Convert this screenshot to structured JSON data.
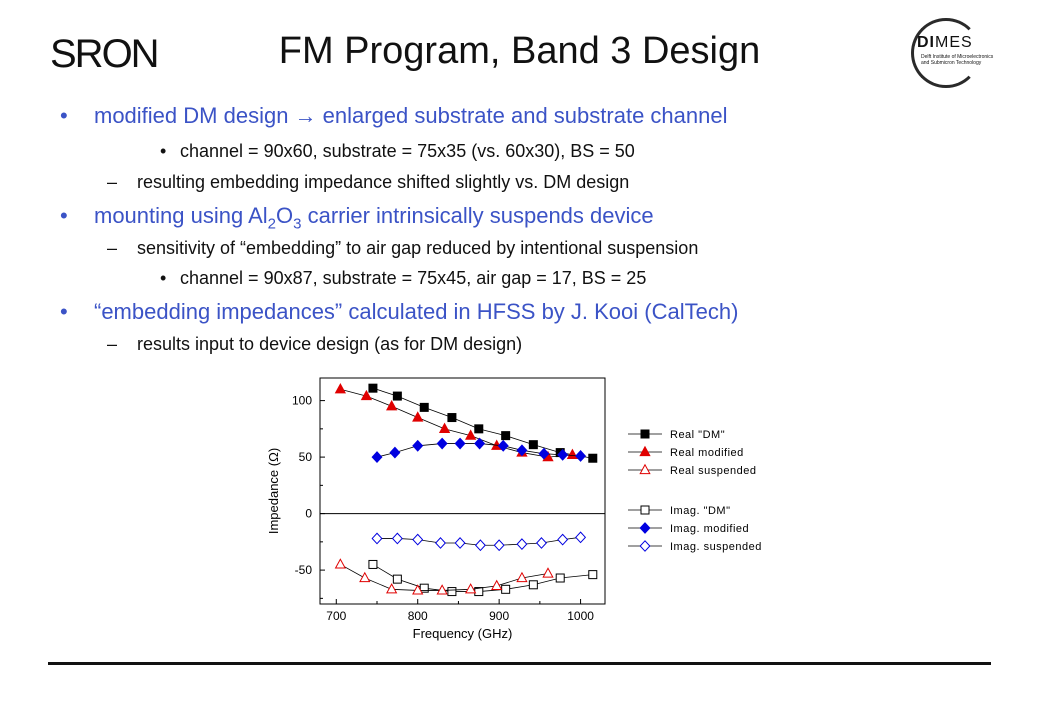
{
  "header": {
    "logo_left": "SRON",
    "title": "FM Program, Band 3 Design",
    "logo_right": {
      "name": "DIMES",
      "bold_part": "DI",
      "light_part": "MES",
      "subtitle_line1": "Delft Institute of Microelectronics",
      "subtitle_line2": "and Submicron Technology"
    }
  },
  "bullets": {
    "b1": "modified DM design → enlarged substrate and substrate channel",
    "b1_1": "channel = 90x60, substrate = 75x35 (vs. 60x30), BS = 50",
    "b1_2": "resulting embedding impedance shifted slightly vs. DM design",
    "b2_pre": "mounting using Al",
    "b2_sub1": "2",
    "b2_mid": "O",
    "b2_sub2": "3",
    "b2_post": " carrier intrinsically suspends device",
    "b2_1": "sensitivity of “embedding” to air gap reduced by intentional suspension",
    "b2_2": "channel = 90x87, substrate = 75x45, air gap = 17, BS = 25",
    "b3": "“embedding impedances” calculated in HFSS by J. Kooi (CalTech)",
    "b3_1": "results input to device design (as for DM design)"
  },
  "symbols": {
    "bullet": "•",
    "dash": "–"
  },
  "chart_data": {
    "type": "scatter",
    "xlabel": "Frequency (GHz)",
    "ylabel": "Impedance (Ω)",
    "xlim": [
      680,
      1030
    ],
    "ylim": [
      -80,
      120
    ],
    "xticks": [
      700,
      800,
      900,
      1000
    ],
    "yticks": [
      -50,
      0,
      50,
      100
    ],
    "legend_position": "right",
    "series": [
      {
        "name": "Real \"DM\"",
        "marker": "square",
        "filled": true,
        "color": "#000000",
        "x": [
          745,
          775,
          808,
          842,
          875,
          908,
          942,
          975,
          1015
        ],
        "y": [
          111,
          104,
          94,
          85,
          75,
          69,
          61,
          54,
          49
        ]
      },
      {
        "name": "Real modified",
        "marker": "triangle",
        "filled": true,
        "color": "#e00000",
        "x": [
          705,
          737,
          768,
          800,
          833,
          865,
          897,
          928,
          960,
          990
        ],
        "y": [
          110,
          104,
          95,
          85,
          75,
          69,
          60,
          54,
          50,
          52
        ]
      },
      {
        "name": "Real suspended",
        "marker": "triangle",
        "filled": false,
        "color": "#e00000",
        "x": [],
        "y": []
      },
      {
        "name": "Imag. \"DM\"",
        "marker": "square",
        "filled": false,
        "color": "#000000",
        "x": [
          745,
          775,
          808,
          842,
          875,
          908,
          942,
          975,
          1015
        ],
        "y": [
          -45,
          -58,
          -66,
          -69,
          -69,
          -67,
          -63,
          -57,
          -54
        ]
      },
      {
        "name": "Imag. modified",
        "marker": "diamond",
        "filled": true,
        "color": "#0000e0",
        "x": [
          750,
          772,
          800,
          830,
          852,
          876,
          905,
          928,
          955,
          978,
          1000
        ],
        "y": [
          50,
          54,
          60,
          62,
          62,
          62,
          60,
          56,
          53,
          52,
          51
        ]
      },
      {
        "name": "Imag. suspended",
        "marker": "diamond",
        "filled": false,
        "color": "#0000e0",
        "x": [
          750,
          775,
          800,
          828,
          852,
          877,
          900,
          928,
          952,
          978,
          1000
        ],
        "y": [
          -22,
          -22,
          -23,
          -26,
          -26,
          -28,
          -28,
          -27,
          -26,
          -23,
          -21
        ]
      },
      {
        "name": "Real suspended (points)",
        "marker": "triangle",
        "filled": false,
        "color": "#e00000",
        "x": [
          705,
          735,
          768,
          800,
          830,
          865,
          897,
          928,
          960
        ],
        "y": [
          -45,
          -57,
          -67,
          -68,
          -68,
          -67,
          -64,
          -57,
          -53
        ]
      }
    ]
  }
}
